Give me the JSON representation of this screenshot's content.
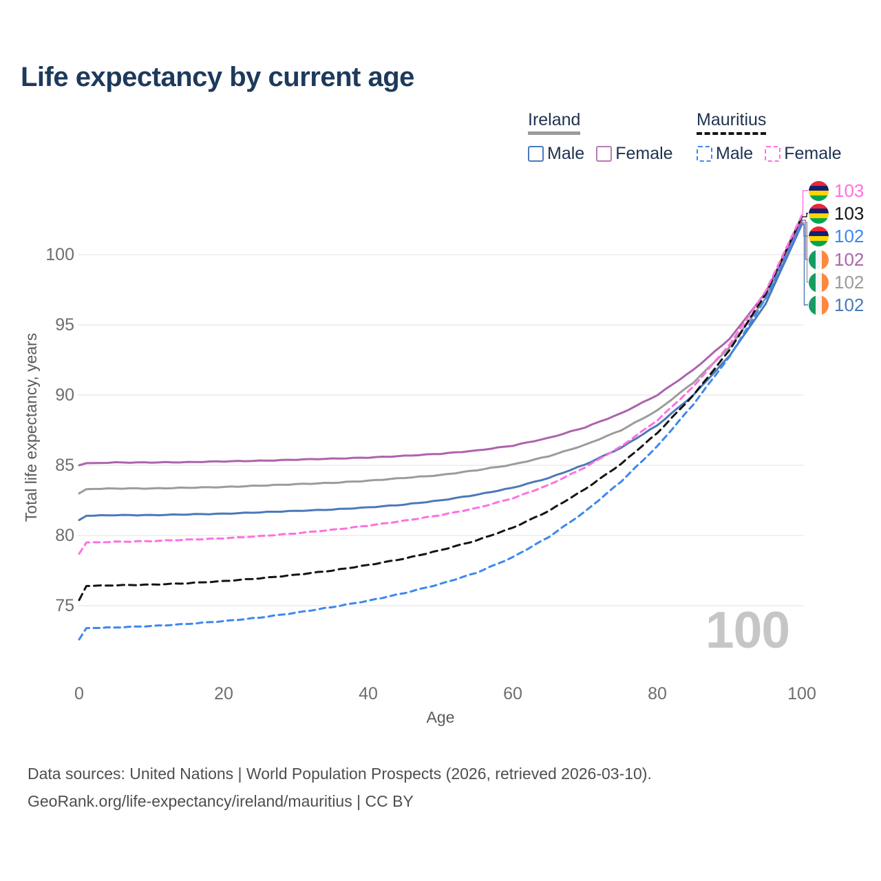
{
  "title": "Life expectancy by current age",
  "legend": {
    "groups": [
      {
        "label": "Ireland",
        "style": "solid",
        "underline_color": "#9b9b9b",
        "items": [
          {
            "label": "Male",
            "color": "#4a79b8"
          },
          {
            "label": "Female",
            "color": "#b879b8"
          }
        ]
      },
      {
        "label": "Mauritius",
        "style": "dashed",
        "underline_color": "#141414",
        "items": [
          {
            "label": "Male",
            "color": "#3d87f0"
          },
          {
            "label": "Female",
            "color": "#ff70e0"
          }
        ]
      }
    ]
  },
  "watermark": "100",
  "caption": {
    "line1": "Data sources: United Nations | World Population Prospects (2026, retrieved 2026-03-10).",
    "line2": "GeoRank.org/life-expectancy/ireland/mauritius | CC BY"
  },
  "flags": {
    "mauritius": [
      "#EA2839",
      "#151F6D",
      "#FFD500",
      "#00A551"
    ],
    "ireland": [
      "#169B62",
      "#F6F6F4",
      "#FF883E"
    ]
  },
  "chart_data": {
    "type": "line",
    "title": "Life expectancy by current age",
    "xlabel": "Age",
    "ylabel": "Total life expectancy, years",
    "xlim": [
      0,
      100
    ],
    "ylim": [
      72,
      104
    ],
    "xticks": [
      0,
      20,
      40,
      60,
      80,
      100
    ],
    "yticks": [
      75,
      80,
      85,
      90,
      95,
      100
    ],
    "grid": "horizontal-only",
    "legend_position": "top-right",
    "series": [
      {
        "id": "ie_total",
        "name": "Ireland Total",
        "color": "#9b9b9b",
        "dash": "solid",
        "points": [
          [
            0,
            83.0
          ],
          [
            1,
            83.3
          ],
          [
            5,
            83.35
          ],
          [
            10,
            83.35
          ],
          [
            15,
            83.4
          ],
          [
            20,
            83.45
          ],
          [
            25,
            83.55
          ],
          [
            30,
            83.65
          ],
          [
            35,
            83.75
          ],
          [
            40,
            83.9
          ],
          [
            45,
            84.1
          ],
          [
            50,
            84.3
          ],
          [
            55,
            84.65
          ],
          [
            60,
            85.05
          ],
          [
            65,
            85.65
          ],
          [
            70,
            86.45
          ],
          [
            75,
            87.5
          ],
          [
            80,
            88.9
          ],
          [
            85,
            90.9
          ],
          [
            90,
            93.4
          ],
          [
            95,
            96.9
          ],
          [
            100,
            102.3
          ]
        ]
      },
      {
        "id": "ie_male",
        "name": "Ireland Male",
        "color": "#4a79b8",
        "dash": "solid",
        "points": [
          [
            0,
            81.1
          ],
          [
            1,
            81.4
          ],
          [
            5,
            81.45
          ],
          [
            10,
            81.45
          ],
          [
            15,
            81.5
          ],
          [
            20,
            81.55
          ],
          [
            25,
            81.65
          ],
          [
            30,
            81.75
          ],
          [
            35,
            81.85
          ],
          [
            40,
            82.0
          ],
          [
            45,
            82.2
          ],
          [
            50,
            82.5
          ],
          [
            55,
            82.9
          ],
          [
            60,
            83.4
          ],
          [
            65,
            84.1
          ],
          [
            70,
            85.05
          ],
          [
            75,
            86.25
          ],
          [
            80,
            87.85
          ],
          [
            85,
            90.0
          ],
          [
            90,
            92.8
          ],
          [
            95,
            96.5
          ],
          [
            100,
            102.15
          ]
        ]
      },
      {
        "id": "ie_female",
        "name": "Ireland Female",
        "color": "#ac63ad",
        "dash": "solid",
        "points": [
          [
            0,
            85.0
          ],
          [
            1,
            85.15
          ],
          [
            5,
            85.2
          ],
          [
            10,
            85.2
          ],
          [
            15,
            85.22
          ],
          [
            20,
            85.28
          ],
          [
            25,
            85.32
          ],
          [
            30,
            85.4
          ],
          [
            35,
            85.47
          ],
          [
            40,
            85.55
          ],
          [
            45,
            85.67
          ],
          [
            50,
            85.82
          ],
          [
            55,
            86.05
          ],
          [
            60,
            86.4
          ],
          [
            65,
            86.95
          ],
          [
            70,
            87.7
          ],
          [
            75,
            88.7
          ],
          [
            80,
            90.0
          ],
          [
            85,
            91.8
          ],
          [
            90,
            94.0
          ],
          [
            95,
            97.3
          ],
          [
            100,
            102.45
          ]
        ]
      },
      {
        "id": "mu_male",
        "name": "Mauritius Male",
        "color": "#3d87f0",
        "dash": "dashed",
        "points": [
          [
            0,
            72.6
          ],
          [
            1,
            73.4
          ],
          [
            5,
            73.45
          ],
          [
            10,
            73.55
          ],
          [
            15,
            73.7
          ],
          [
            20,
            73.9
          ],
          [
            25,
            74.15
          ],
          [
            30,
            74.5
          ],
          [
            35,
            74.9
          ],
          [
            40,
            75.35
          ],
          [
            45,
            75.9
          ],
          [
            50,
            76.55
          ],
          [
            55,
            77.35
          ],
          [
            60,
            78.45
          ],
          [
            65,
            79.9
          ],
          [
            70,
            81.7
          ],
          [
            75,
            83.85
          ],
          [
            80,
            86.35
          ],
          [
            85,
            89.35
          ],
          [
            90,
            92.75
          ],
          [
            95,
            96.9
          ],
          [
            100,
            102.2
          ]
        ]
      },
      {
        "id": "mu_total",
        "name": "Mauritius Total",
        "color": "#141414",
        "dash": "dashed",
        "points": [
          [
            0,
            75.4
          ],
          [
            1,
            76.4
          ],
          [
            5,
            76.45
          ],
          [
            10,
            76.5
          ],
          [
            15,
            76.6
          ],
          [
            20,
            76.75
          ],
          [
            25,
            76.95
          ],
          [
            30,
            77.2
          ],
          [
            35,
            77.5
          ],
          [
            40,
            77.9
          ],
          [
            45,
            78.35
          ],
          [
            50,
            78.95
          ],
          [
            55,
            79.65
          ],
          [
            60,
            80.55
          ],
          [
            65,
            81.75
          ],
          [
            70,
            83.3
          ],
          [
            75,
            85.1
          ],
          [
            80,
            87.3
          ],
          [
            85,
            90.0
          ],
          [
            90,
            93.2
          ],
          [
            95,
            97.2
          ],
          [
            100,
            102.7
          ]
        ]
      },
      {
        "id": "mu_female",
        "name": "Mauritius Female",
        "color": "#ff70e0",
        "dash": "dashed",
        "points": [
          [
            0,
            78.7
          ],
          [
            1,
            79.5
          ],
          [
            5,
            79.55
          ],
          [
            10,
            79.6
          ],
          [
            15,
            79.7
          ],
          [
            20,
            79.8
          ],
          [
            25,
            79.95
          ],
          [
            30,
            80.15
          ],
          [
            35,
            80.4
          ],
          [
            40,
            80.7
          ],
          [
            45,
            81.05
          ],
          [
            50,
            81.45
          ],
          [
            55,
            81.95
          ],
          [
            60,
            82.65
          ],
          [
            65,
            83.6
          ],
          [
            70,
            84.85
          ],
          [
            75,
            86.35
          ],
          [
            80,
            88.2
          ],
          [
            85,
            90.6
          ],
          [
            90,
            93.6
          ],
          [
            95,
            97.4
          ],
          [
            100,
            102.8
          ]
        ]
      }
    ],
    "endpoint_labels": [
      {
        "series": "mu_female",
        "flag": "mauritius",
        "value": "103",
        "color": "#ff70e0"
      },
      {
        "series": "mu_total",
        "flag": "mauritius",
        "value": "103",
        "color": "#141414"
      },
      {
        "series": "mu_male",
        "flag": "mauritius",
        "value": "102",
        "color": "#3d87f0"
      },
      {
        "series": "ie_female",
        "flag": "ireland",
        "value": "102",
        "color": "#ac63ad"
      },
      {
        "series": "ie_total",
        "flag": "ireland",
        "value": "102",
        "color": "#9b9b9b"
      },
      {
        "series": "ie_male",
        "flag": "ireland",
        "value": "102",
        "color": "#4a79b8"
      }
    ]
  }
}
